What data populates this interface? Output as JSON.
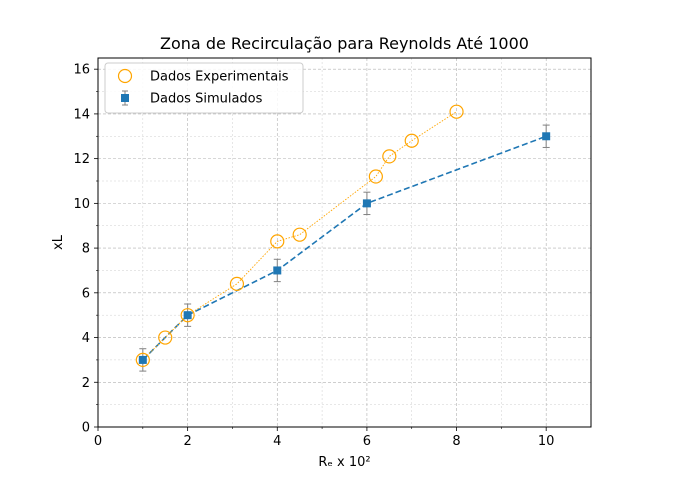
{
  "chart_data": {
    "type": "scatter",
    "title": "Zona de Recirculação para Reynolds Até 1000",
    "xlabel": "Rₑ x 10²",
    "ylabel": "xL",
    "xlim": [
      0,
      11
    ],
    "ylim": [
      0,
      16.5
    ],
    "x_major_ticks": [
      0,
      2,
      4,
      6,
      8,
      10
    ],
    "y_major_ticks": [
      0,
      2,
      4,
      6,
      8,
      10,
      12,
      14,
      16
    ],
    "x_tick_labels": [
      "0",
      "2",
      "4",
      "6",
      "8",
      "10"
    ],
    "y_tick_labels": [
      "0",
      "2",
      "4",
      "6",
      "8",
      "10",
      "12",
      "14",
      "16"
    ],
    "grid": true,
    "legend_position": "upper-left",
    "series": [
      {
        "name": "Dados Experimentais",
        "color": "#ffa500",
        "marker": "open-circle",
        "line": "dotted",
        "x": [
          1,
          1.5,
          2,
          3.1,
          4,
          4.5,
          6.2,
          6.5,
          7,
          8
        ],
        "y": [
          3,
          4,
          5,
          6.4,
          8.3,
          8.6,
          11.2,
          12.1,
          12.8,
          14.1
        ]
      },
      {
        "name": "Dados Simulados",
        "color": "#1f77b4",
        "marker": "square",
        "line": "dashed",
        "x": [
          1,
          2,
          4,
          6,
          10
        ],
        "y": [
          3,
          5,
          7,
          10,
          13
        ],
        "error": [
          0.5,
          0.5,
          0.5,
          0.5,
          0.5
        ]
      }
    ]
  }
}
